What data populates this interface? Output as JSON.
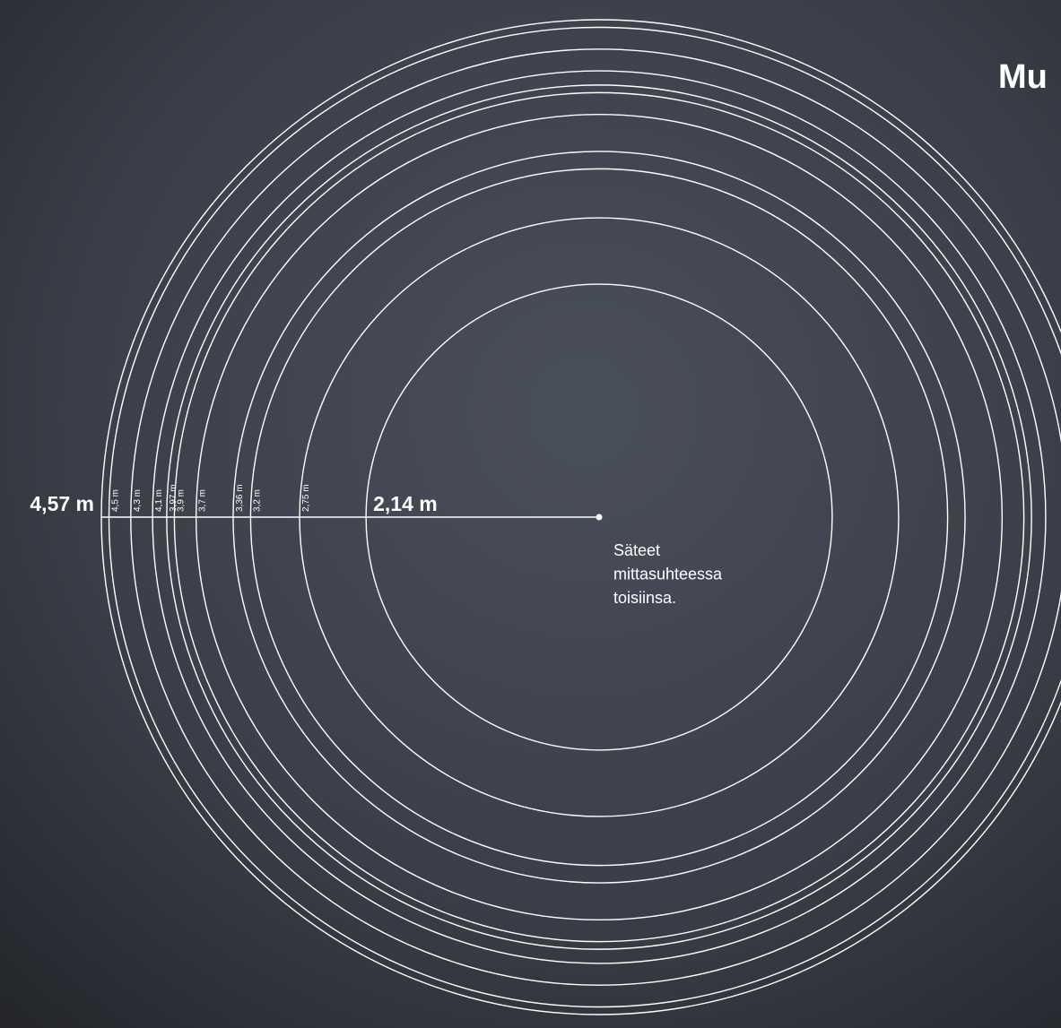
{
  "chart_data": {
    "type": "concentric",
    "title": "Mu",
    "values": [
      4.57,
      4.5,
      4.3,
      4.1,
      3.97,
      3.9,
      3.7,
      3.36,
      3.2,
      2.75,
      2.14
    ],
    "value_labels": [
      "4,57 m",
      "4,5 m",
      "4,3 m",
      "4,1 m",
      "3,97 m",
      "3,9 m",
      "3,7 m",
      "3,36 m",
      "3,2 m",
      "2,75 m",
      "2,14 m"
    ],
    "note": [
      "Säteet",
      "mittasuhteessa",
      "toisiinsa."
    ],
    "color": "#ffffff"
  }
}
